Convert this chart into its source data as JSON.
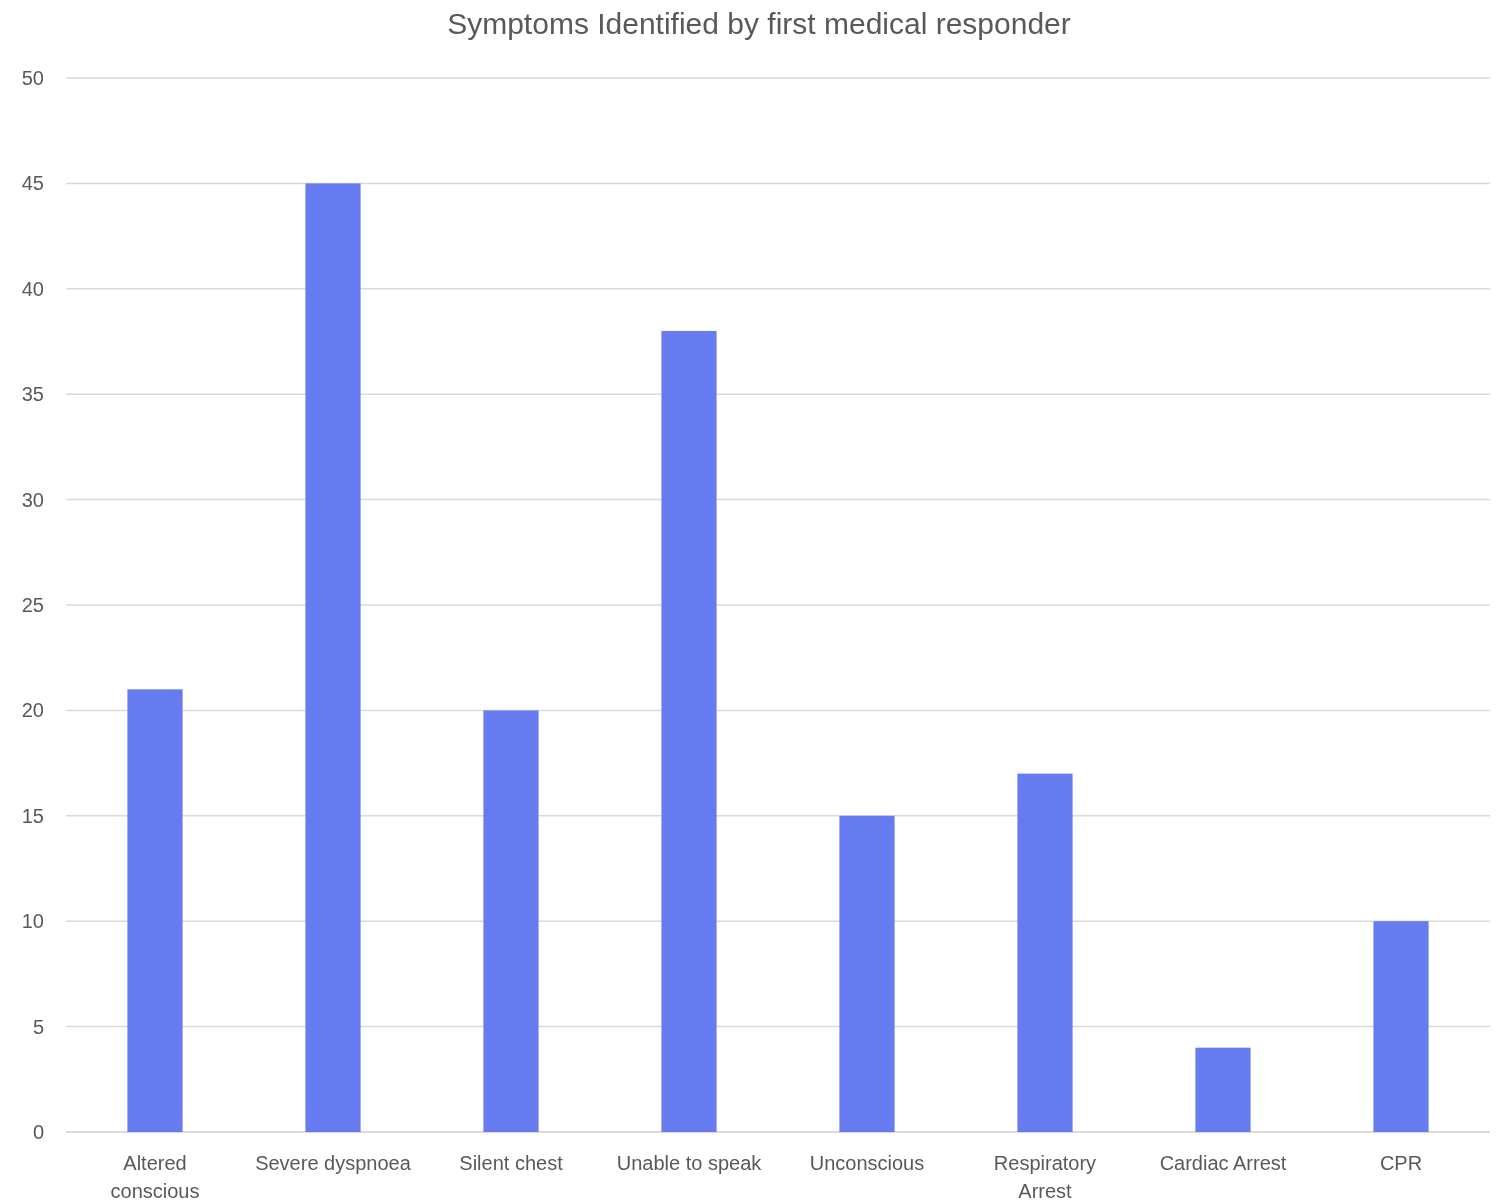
{
  "chart_data": {
    "type": "bar",
    "title": "Symptoms Identified by first medical responder",
    "categories": [
      "Altered conscious",
      "Severe dyspnoea",
      "Silent chest",
      "Unable to speak",
      "Unconscious",
      "Respiratory Arrest",
      "Cardiac Arrest",
      "CPR"
    ],
    "values": [
      21,
      45,
      20,
      38,
      15,
      17,
      4,
      10
    ],
    "color": "#657bef",
    "ylim": [
      0,
      50
    ],
    "yticks": [
      0,
      5,
      10,
      15,
      20,
      25,
      30,
      35,
      40,
      45,
      50
    ],
    "grid": "y"
  }
}
